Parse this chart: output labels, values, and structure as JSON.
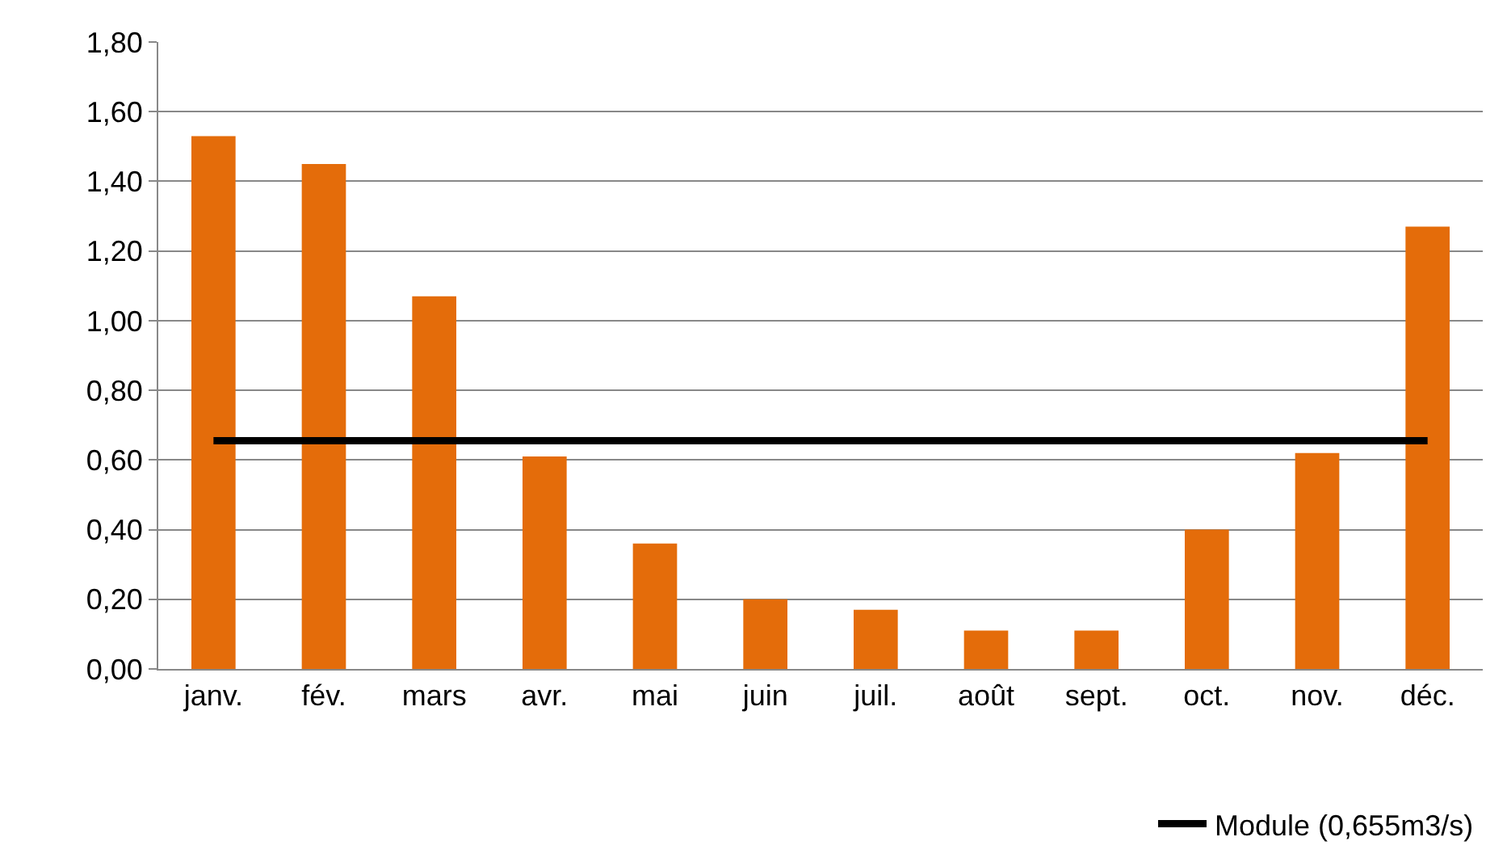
{
  "chart_data": {
    "type": "bar",
    "categories": [
      "janv.",
      "fév.",
      "mars",
      "avr.",
      "mai",
      "juin",
      "juil.",
      "août",
      "sept.",
      "oct.",
      "nov.",
      "déc."
    ],
    "series": [
      {
        "color": "#e46c0a",
        "values": [
          1.53,
          1.45,
          1.07,
          0.61,
          0.36,
          0.2,
          0.17,
          0.11,
          0.11,
          0.4,
          0.62,
          1.27
        ]
      },
      {
        "type": "line",
        "name": "Module (0,655m3/s)",
        "color": "#000000",
        "values": [
          0.655,
          0.655,
          0.655,
          0.655,
          0.655,
          0.655,
          0.655,
          0.655,
          0.655,
          0.655,
          0.655,
          0.655
        ]
      }
    ],
    "ylim": [
      0,
      1.8
    ],
    "yticks": [
      {
        "value": 0,
        "label": "0,00"
      },
      {
        "value": 0.2,
        "label": "0,20"
      },
      {
        "value": 0.4,
        "label": "0,40"
      },
      {
        "value": 0.6,
        "label": "0,60"
      },
      {
        "value": 0.8,
        "label": "0,80"
      },
      {
        "value": 1.0,
        "label": "1,00"
      },
      {
        "value": 1.2,
        "label": "1,20"
      },
      {
        "value": 1.4,
        "label": "1,40"
      },
      {
        "value": 1.6,
        "label": "1,60"
      },
      {
        "value": 1.8,
        "label": "1,80"
      }
    ],
    "grid": "y",
    "legend": "bottom right",
    "marker": "none",
    "line_style": "solid"
  }
}
